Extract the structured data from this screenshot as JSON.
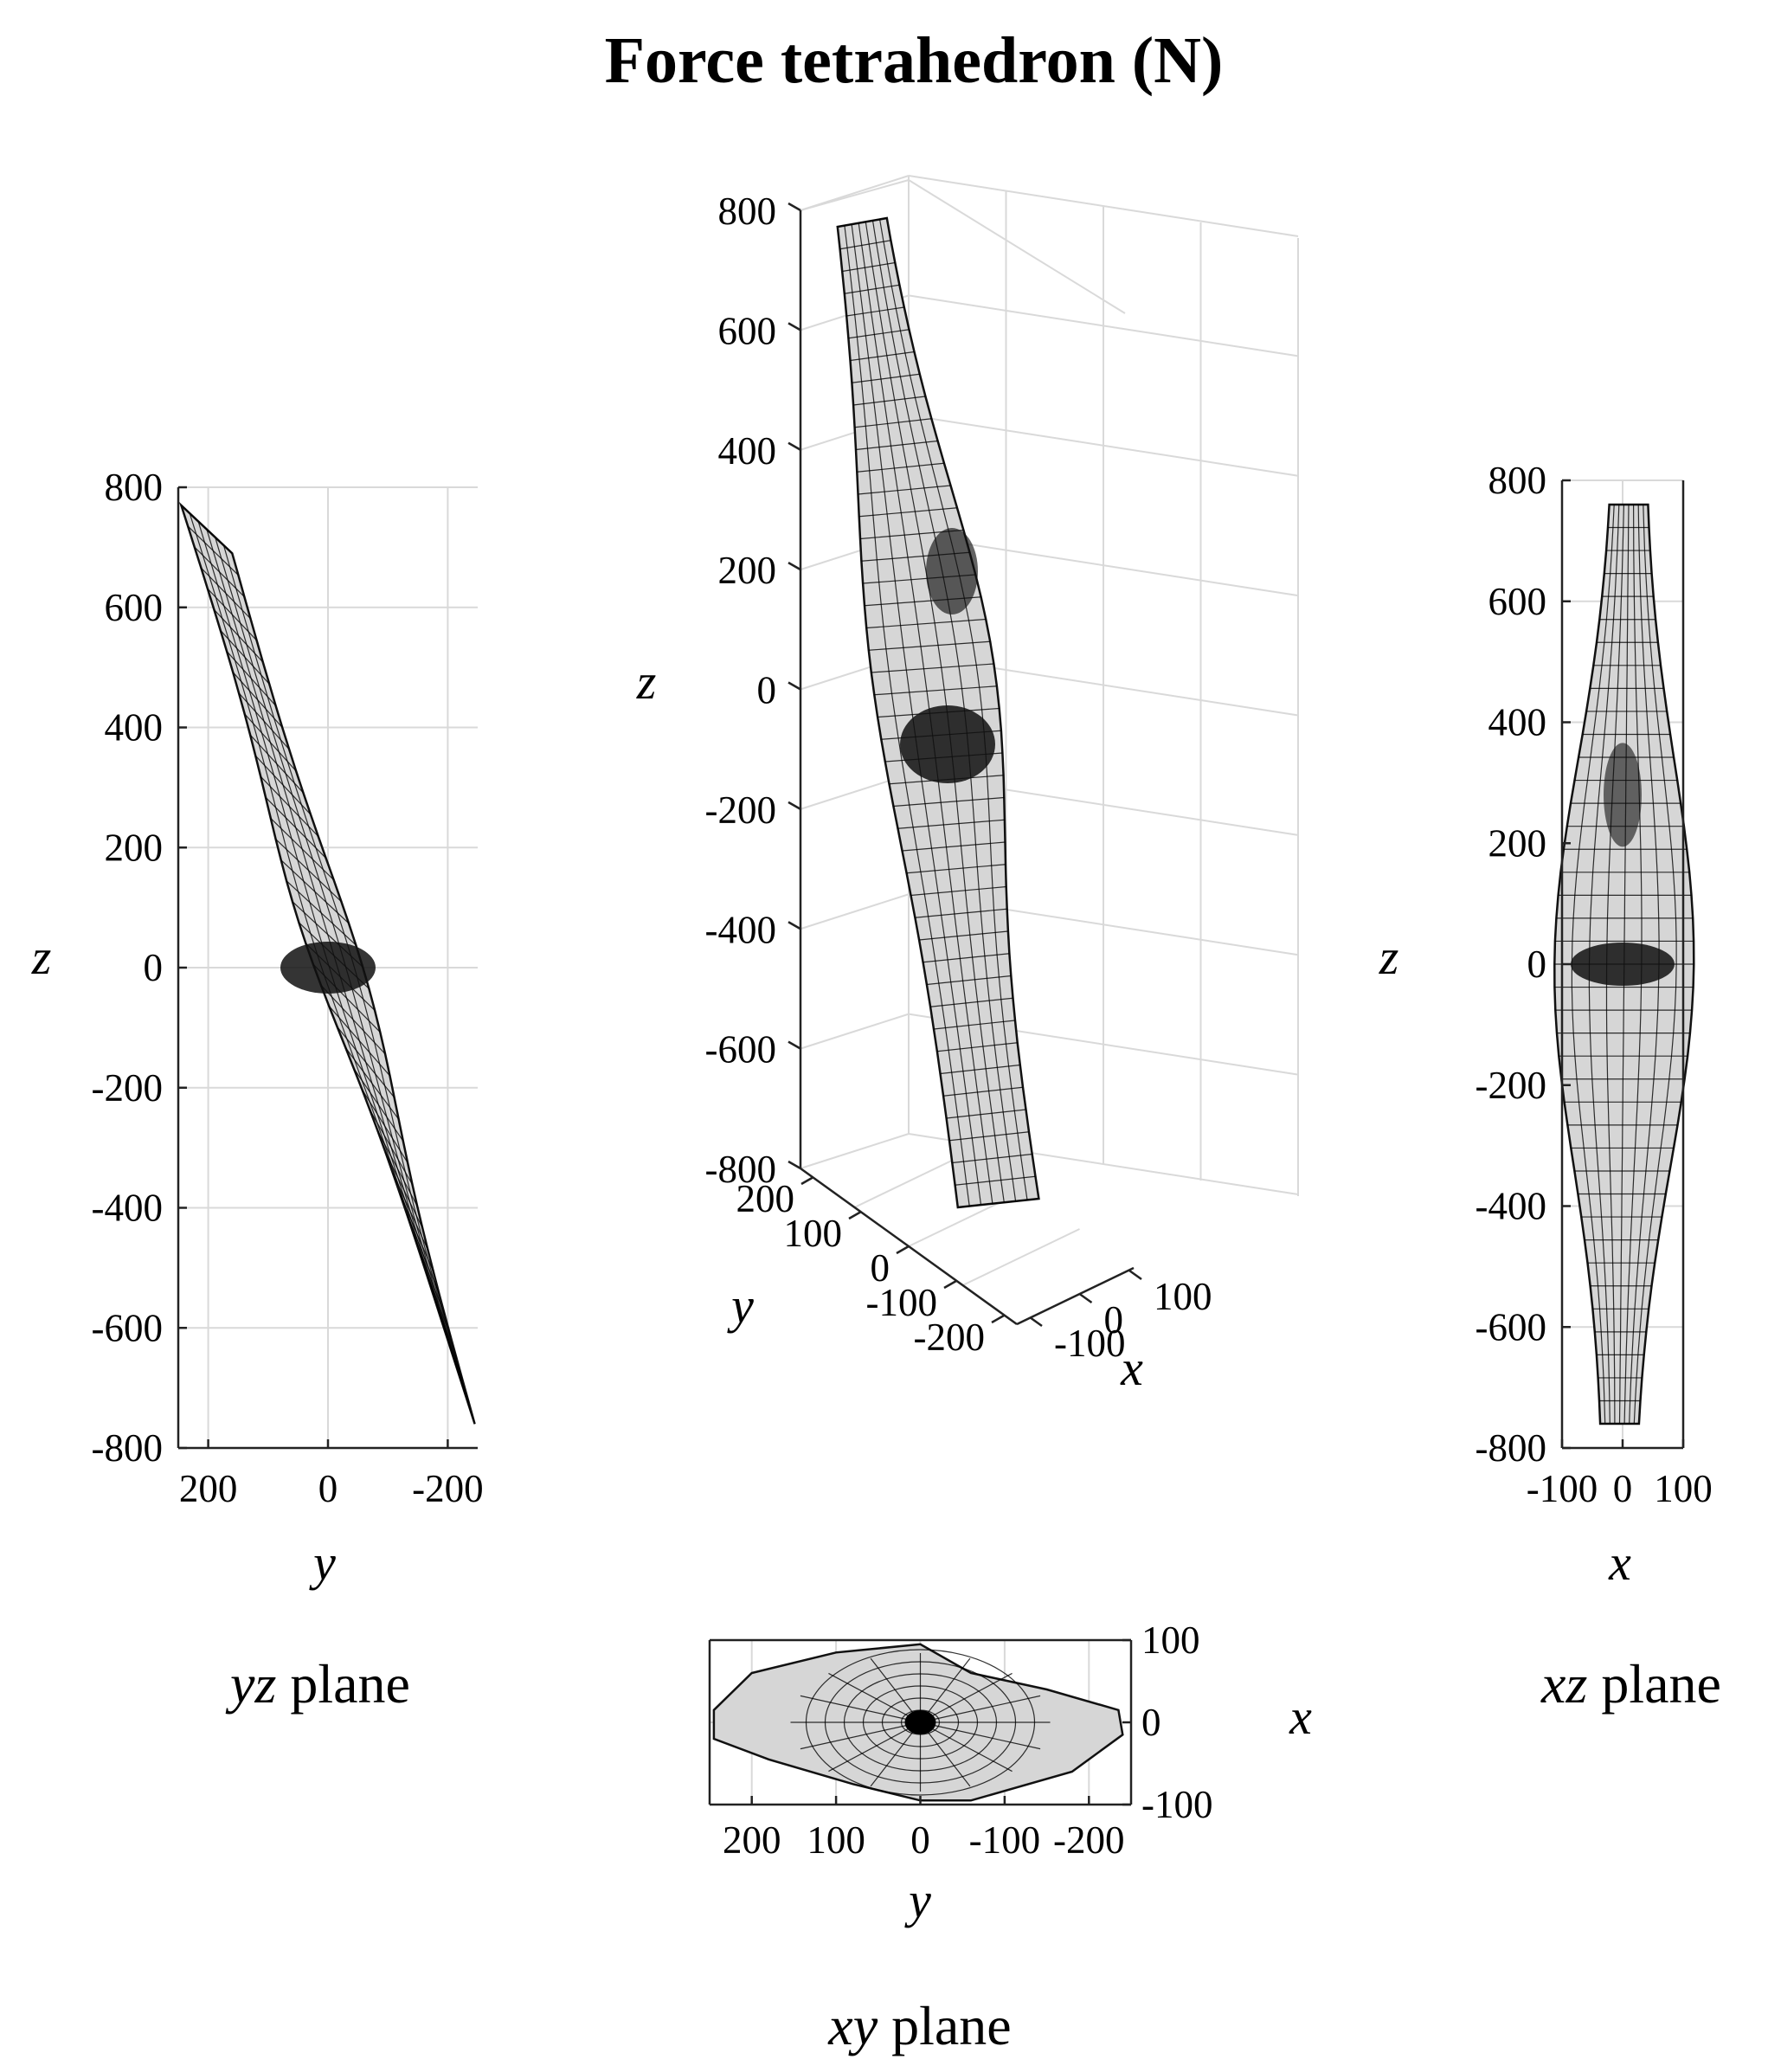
{
  "figure": {
    "title": "Force tetrahedron (N)"
  },
  "chart_data": [
    {
      "type": "surface-projection",
      "view": "yz",
      "caption": {
        "italic": "yz",
        "rest": " plane"
      },
      "xlabel": "y",
      "ylabel": "z",
      "xlim": [
        250,
        -250
      ],
      "ylim": [
        -800,
        800
      ],
      "x_ticks": [
        "200",
        "0",
        "-200"
      ],
      "y_ticks": [
        "800",
        "600",
        "400",
        "200",
        "0",
        "-200",
        "-400",
        "-600",
        "-800"
      ],
      "grid": true,
      "surface_extent": {
        "y": [
          -250,
          250
        ],
        "z": [
          -760,
          760
        ]
      }
    },
    {
      "type": "surface-3d",
      "view": "3d",
      "xlabel": "x",
      "ylabel": "y",
      "zlabel": "z",
      "x_ticks": [
        "-100",
        "0",
        "100"
      ],
      "y_ticks": [
        "200",
        "100",
        "0",
        "-100",
        "-200"
      ],
      "z_ticks": [
        "800",
        "600",
        "400",
        "200",
        "0",
        "-200",
        "-400",
        "-600",
        "-800"
      ],
      "xlim": [
        -100,
        100
      ],
      "ylim": [
        -250,
        250
      ],
      "zlim": [
        -800,
        800
      ],
      "grid": true
    },
    {
      "type": "surface-projection",
      "view": "xz",
      "caption": {
        "italic": "xz",
        "rest": " plane"
      },
      "xlabel": "x",
      "ylabel": "z",
      "xlim": [
        -100,
        100
      ],
      "ylim": [
        -800,
        800
      ],
      "x_ticks": [
        "-100",
        "0",
        "100"
      ],
      "y_ticks": [
        "800",
        "600",
        "400",
        "200",
        "0",
        "-200",
        "-400",
        "-600",
        "-800"
      ],
      "grid": true,
      "surface_extent": {
        "x": [
          -90,
          90
        ],
        "z": [
          -760,
          760
        ]
      }
    },
    {
      "type": "surface-projection",
      "view": "xy",
      "caption": {
        "italic": "xy",
        "rest": " plane"
      },
      "xlabel": "y",
      "ylabel": "x",
      "xlim": [
        250,
        -250
      ],
      "ylim": [
        -100,
        100
      ],
      "x_ticks": [
        "200",
        "100",
        "0",
        "-100",
        "-200"
      ],
      "y_ticks": [
        "100",
        "0",
        "-100"
      ],
      "grid": true,
      "surface_extent": {
        "y": [
          -250,
          250
        ],
        "x": [
          -100,
          100
        ]
      }
    }
  ]
}
